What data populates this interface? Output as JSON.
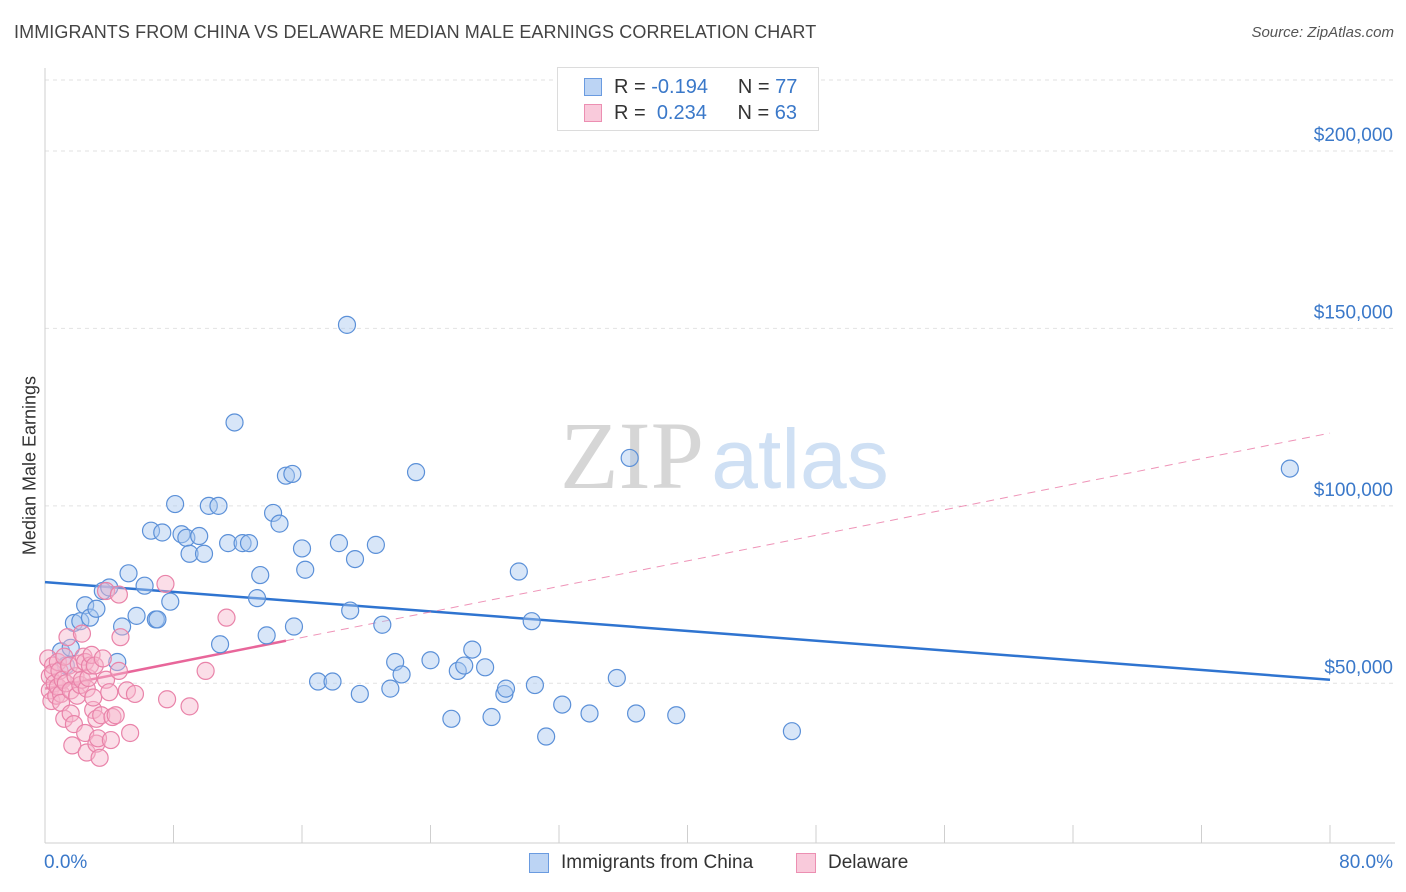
{
  "title": "IMMIGRANTS FROM CHINA VS DELAWARE MEDIAN MALE EARNINGS CORRELATION CHART",
  "source": "Source: ZipAtlas.com",
  "watermark": {
    "zip": "ZIP",
    "atlas": "atlas"
  },
  "legend_top": [
    {
      "r_label": "R =",
      "r_value": "-0.194",
      "n_label": "N =",
      "n_value": "77"
    },
    {
      "r_label": "R =",
      "r_value": "0.234",
      "n_label": "N =",
      "n_value": "63"
    }
  ],
  "colors": {
    "blue": "#2f74d0",
    "blue_fill": "#a9c8f0",
    "pink": "#e8669a",
    "pink_fill": "#f6b6cc",
    "axis_text": "#3a78c9"
  },
  "chart_data": {
    "type": "scatter",
    "title": "IMMIGRANTS FROM CHINA VS DELAWARE MEDIAN MALE EARNINGS CORRELATION CHART",
    "xlabel": "",
    "ylabel": "Median Male Earnings",
    "xlim": [
      0,
      80
    ],
    "ylim": [
      5000,
      220000
    ],
    "x_tick_labels": [
      "0.0%",
      "80.0%"
    ],
    "y_ticks": [
      50000,
      100000,
      150000,
      200000
    ],
    "y_tick_labels": [
      "$50,000",
      "$100,000",
      "$150,000",
      "$200,000"
    ],
    "grid": true,
    "legend_placement": "bottom",
    "series": [
      {
        "name": "Immigrants from China",
        "color": "#2f74d0",
        "points": [
          [
            1.0,
            59000
          ],
          [
            1.3,
            55000
          ],
          [
            1.6,
            60000
          ],
          [
            1.8,
            67000
          ],
          [
            2.2,
            67500
          ],
          [
            2.5,
            72000
          ],
          [
            2.8,
            68500
          ],
          [
            3.2,
            71000
          ],
          [
            3.6,
            76000
          ],
          [
            4.0,
            77000
          ],
          [
            4.5,
            56000
          ],
          [
            4.8,
            66000
          ],
          [
            5.2,
            81000
          ],
          [
            5.7,
            69000
          ],
          [
            6.2,
            77500
          ],
          [
            6.6,
            93000
          ],
          [
            6.9,
            68000
          ],
          [
            7.3,
            92500
          ],
          [
            7.8,
            73000
          ],
          [
            8.1,
            100500
          ],
          [
            8.5,
            92000
          ],
          [
            8.8,
            91000
          ],
          [
            9.0,
            86500
          ],
          [
            9.6,
            91500
          ],
          [
            9.9,
            86500
          ],
          [
            10.2,
            100000
          ],
          [
            10.8,
            100000
          ],
          [
            10.9,
            61000
          ],
          [
            11.4,
            89500
          ],
          [
            11.8,
            123500
          ],
          [
            12.3,
            89500
          ],
          [
            12.7,
            89500
          ],
          [
            13.2,
            74000
          ],
          [
            13.4,
            80500
          ],
          [
            13.8,
            63500
          ],
          [
            14.2,
            98000
          ],
          [
            14.6,
            95000
          ],
          [
            15.0,
            108500
          ],
          [
            15.4,
            109000
          ],
          [
            15.5,
            66000
          ],
          [
            16.0,
            88000
          ],
          [
            16.2,
            82000
          ],
          [
            17.0,
            50500
          ],
          [
            17.9,
            50500
          ],
          [
            18.3,
            89500
          ],
          [
            18.8,
            151000
          ],
          [
            19.0,
            70500
          ],
          [
            19.3,
            85000
          ],
          [
            19.6,
            47000
          ],
          [
            20.6,
            89000
          ],
          [
            21.0,
            66500
          ],
          [
            21.5,
            48500
          ],
          [
            21.8,
            56000
          ],
          [
            22.2,
            52500
          ],
          [
            23.1,
            109500
          ],
          [
            24.0,
            56500
          ],
          [
            25.3,
            40000
          ],
          [
            25.7,
            53500
          ],
          [
            26.1,
            55000
          ],
          [
            26.6,
            59500
          ],
          [
            27.4,
            54500
          ],
          [
            27.8,
            40500
          ],
          [
            28.6,
            47000
          ],
          [
            28.7,
            48500
          ],
          [
            29.5,
            81500
          ],
          [
            30.3,
            67500
          ],
          [
            30.5,
            49500
          ],
          [
            31.2,
            35000
          ],
          [
            32.2,
            44000
          ],
          [
            33.9,
            41500
          ],
          [
            35.6,
            51500
          ],
          [
            36.4,
            113500
          ],
          [
            36.8,
            41500
          ],
          [
            39.3,
            41000
          ],
          [
            46.5,
            36500
          ],
          [
            77.5,
            110500
          ],
          [
            7.0,
            68000
          ]
        ],
        "trend": [
          [
            0,
            78500
          ],
          [
            80,
            51000
          ]
        ]
      },
      {
        "name": "Delaware",
        "color": "#e8669a",
        "points": [
          [
            0.2,
            57000
          ],
          [
            0.3,
            52000
          ],
          [
            0.3,
            48000
          ],
          [
            0.4,
            45000
          ],
          [
            0.5,
            55000
          ],
          [
            0.5,
            53000
          ],
          [
            0.6,
            50000
          ],
          [
            0.7,
            46500
          ],
          [
            0.8,
            56000
          ],
          [
            0.8,
            49000
          ],
          [
            0.9,
            53500
          ],
          [
            1.0,
            47000
          ],
          [
            1.0,
            44500
          ],
          [
            1.1,
            51000
          ],
          [
            1.2,
            40000
          ],
          [
            1.2,
            57500
          ],
          [
            1.3,
            50000
          ],
          [
            1.4,
            63000
          ],
          [
            1.5,
            55000
          ],
          [
            1.6,
            41500
          ],
          [
            1.6,
            48000
          ],
          [
            1.7,
            32500
          ],
          [
            1.8,
            38500
          ],
          [
            1.9,
            52000
          ],
          [
            2.0,
            46500
          ],
          [
            2.1,
            55500
          ],
          [
            2.2,
            49500
          ],
          [
            2.3,
            64000
          ],
          [
            2.3,
            51000
          ],
          [
            2.4,
            57500
          ],
          [
            2.5,
            56000
          ],
          [
            2.5,
            36000
          ],
          [
            2.6,
            30500
          ],
          [
            2.6,
            48500
          ],
          [
            2.7,
            51500
          ],
          [
            2.8,
            55000
          ],
          [
            2.9,
            58000
          ],
          [
            3.0,
            42500
          ],
          [
            3.0,
            46000
          ],
          [
            3.1,
            55000
          ],
          [
            3.2,
            33000
          ],
          [
            3.2,
            40000
          ],
          [
            3.3,
            34500
          ],
          [
            3.4,
            29000
          ],
          [
            3.5,
            41000
          ],
          [
            3.6,
            57000
          ],
          [
            3.8,
            76000
          ],
          [
            3.8,
            51000
          ],
          [
            4.0,
            47500
          ],
          [
            4.1,
            34000
          ],
          [
            4.2,
            40500
          ],
          [
            4.4,
            41000
          ],
          [
            4.6,
            75000
          ],
          [
            4.6,
            53500
          ],
          [
            4.7,
            63000
          ],
          [
            5.1,
            48000
          ],
          [
            5.3,
            36000
          ],
          [
            5.6,
            47000
          ],
          [
            7.5,
            78000
          ],
          [
            7.6,
            45500
          ],
          [
            9.0,
            43500
          ],
          [
            10.0,
            53500
          ],
          [
            11.3,
            68500
          ]
        ],
        "trend": [
          [
            0,
            48500
          ],
          [
            15,
            62000
          ]
        ],
        "trend_extended": [
          [
            15,
            62000
          ],
          [
            80,
            120500
          ]
        ]
      }
    ]
  },
  "bottom_legend": [
    "Immigrants from China",
    "Delaware"
  ]
}
